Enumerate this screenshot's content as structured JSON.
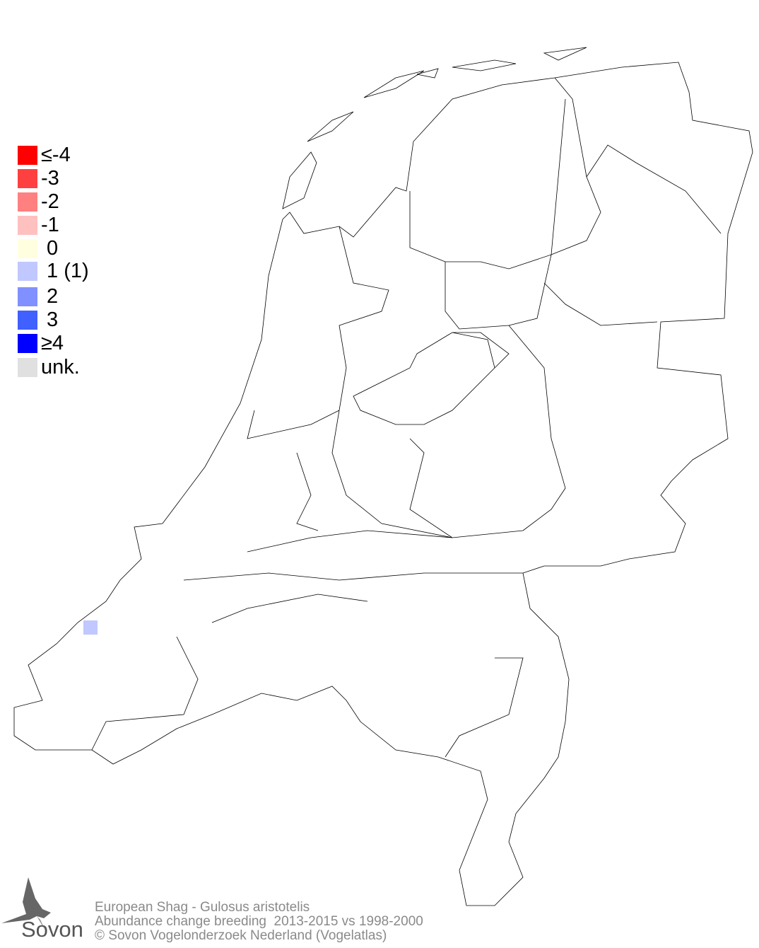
{
  "legend": {
    "items": [
      {
        "label": "≤-4",
        "color": "#ff0000"
      },
      {
        "label": "-3",
        "color": "#ff4040"
      },
      {
        "label": "-2",
        "color": "#ff8080"
      },
      {
        "label": "-1",
        "color": "#ffc0c0"
      },
      {
        "label": " 0",
        "color": "#ffffe0"
      },
      {
        "label": " 1 (1)",
        "color": "#c0c8ff"
      },
      {
        "label": " 2",
        "color": "#8090ff"
      },
      {
        "label": " 3",
        "color": "#4060ff"
      },
      {
        "label": "≥4",
        "color": "#0000ff"
      },
      {
        "label": "unk.",
        "color": "#e0e0e0"
      }
    ]
  },
  "map": {
    "region": "Netherlands",
    "cells": [
      {
        "class": "1",
        "color": "#c0c8ff",
        "location": "Zeeland coast (Schouwen)"
      }
    ]
  },
  "footer": {
    "species": "European Shag - Gulosus aristotelis",
    "subtitle": "Abundance change breeding  2013-2015 vs 1998-2000",
    "copyright": "© Sovon Vogelonderzoek Nederland (Vogelatlas)"
  },
  "logo": {
    "text": "Sovon"
  }
}
